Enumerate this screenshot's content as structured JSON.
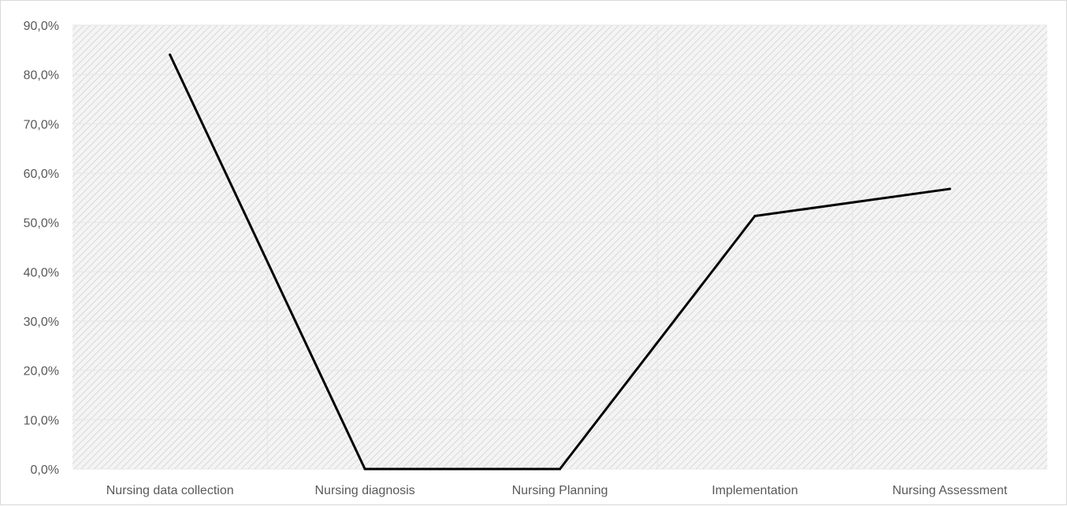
{
  "chart_data": {
    "type": "line",
    "title": "",
    "xlabel": "",
    "ylabel": "",
    "categories": [
      "Nursing data collection",
      "Nursing diagnosis",
      "Nursing Planning",
      "Implementation",
      "Nursing Assessment"
    ],
    "series": [
      {
        "values": [
          84.0,
          0.0,
          0.0,
          51.3,
          56.8
        ],
        "color": "#000000"
      }
    ],
    "ylim": [
      0,
      90
    ],
    "yticks": [
      "0,0%",
      "10,0%",
      "20,0%",
      "30,0%",
      "40,0%",
      "50,0%",
      "60,0%",
      "70,0%",
      "80,0%",
      "90,0%"
    ],
    "grid": true,
    "legend": "none",
    "colors": {
      "plot_background": "#f2f2f2",
      "hatch": "#d0d0d0",
      "gridline": "#e6e6e6",
      "tick_text": "#595959"
    }
  }
}
